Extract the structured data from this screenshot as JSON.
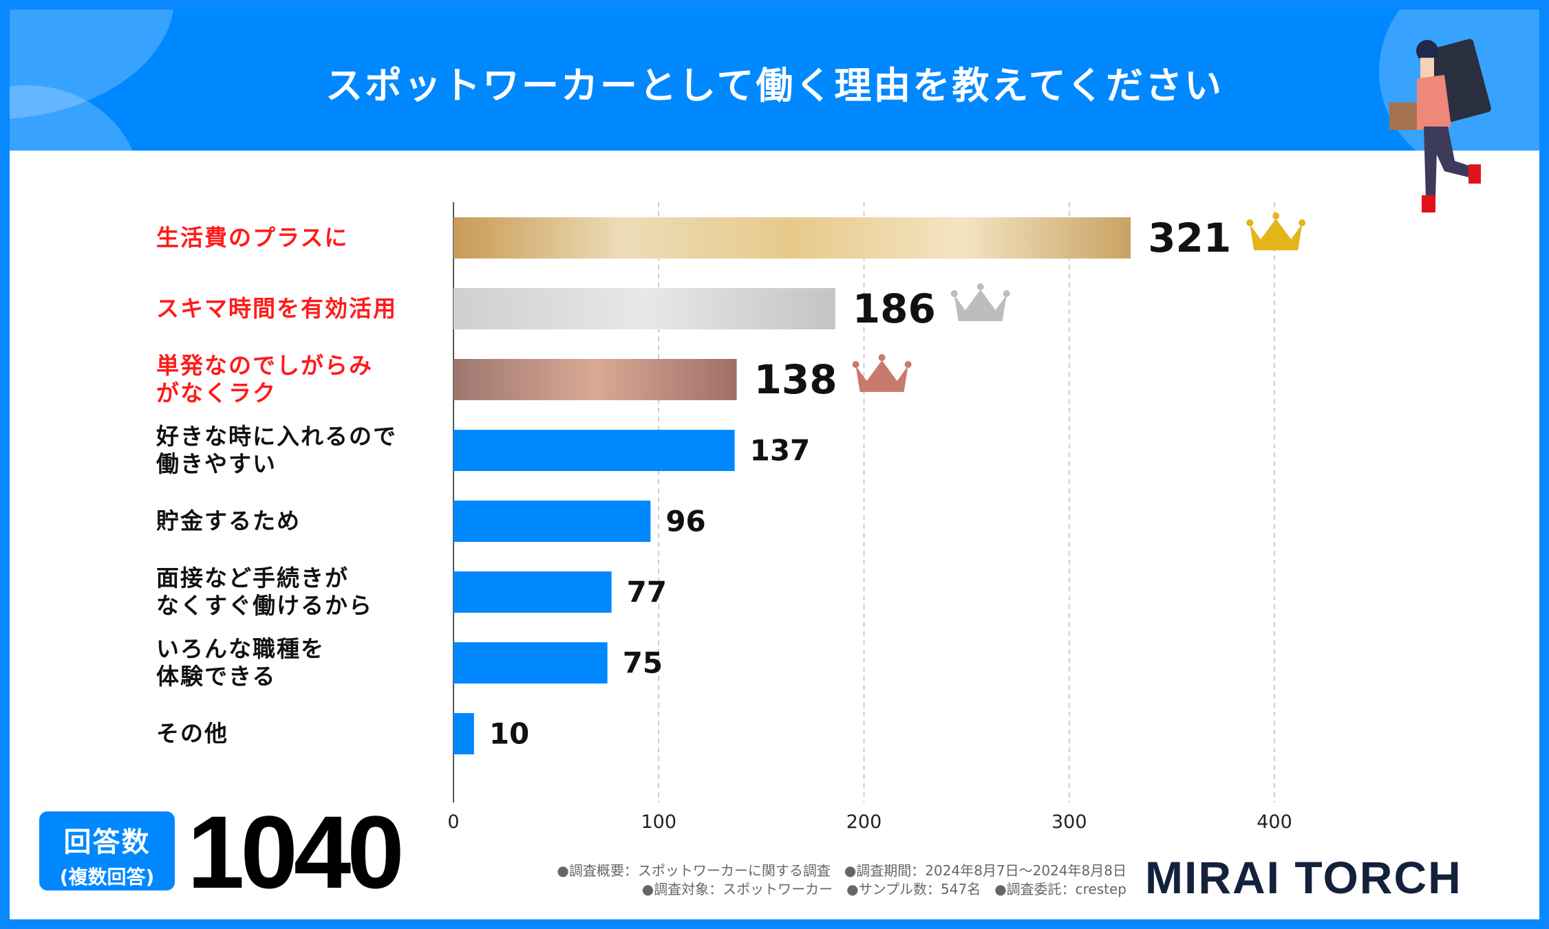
{
  "title": "スポットワーカーとして働く理由を教えてください",
  "colors": {
    "brand": "#0088ff",
    "highlight_label": "#ff1a1a",
    "gold": "#e2b51a",
    "silver": "#bdbdbd",
    "bronze": "#c87a6c"
  },
  "chart_data": {
    "type": "bar",
    "orientation": "horizontal",
    "categories": [
      "生活費のプラスに",
      "スキマ時間を有効活用",
      "単発なのでしがらみがなくラク",
      "好きな時に入れるので働きやすい",
      "貯金するため",
      "面接など手続きがなくすぐ働けるから",
      "いろんな職種を体験できる",
      "その他"
    ],
    "category_lines": [
      [
        "生活費のプラスに"
      ],
      [
        "スキマ時間を有効活用"
      ],
      [
        "単発なのでしがらみ",
        "がなくラク"
      ],
      [
        "好きな時に入れるので",
        "働きやすい"
      ],
      [
        "貯金するため"
      ],
      [
        "面接など手続きが",
        "なくすぐ働けるから"
      ],
      [
        "いろんな職種を",
        "体験できる"
      ],
      [
        "その他"
      ]
    ],
    "values": [
      321,
      186,
      138,
      137,
      96,
      77,
      75,
      10
    ],
    "value_labels": [
      "321",
      "186",
      "138",
      "137",
      "96",
      "77",
      "75",
      "10"
    ],
    "xlim": [
      0,
      400
    ],
    "xticks": [
      "0",
      "100",
      "200",
      "300",
      "400"
    ],
    "grid": "vertical dashed",
    "ranks": [
      "gold-crown",
      "silver-crown",
      "bronze-crown"
    ]
  },
  "summary": {
    "badge_line1": "回答数",
    "badge_line2": "(複数回答)",
    "total": "1040"
  },
  "notes": [
    "●調査概要：スポットワーカーに関する調査　●調査期間：2024年8月7日～2024年8月8日",
    "●調査対象：スポットワーカー　●サンプル数：547名　●調査委託：crestep"
  ],
  "logo": "MIRAI TORCH"
}
